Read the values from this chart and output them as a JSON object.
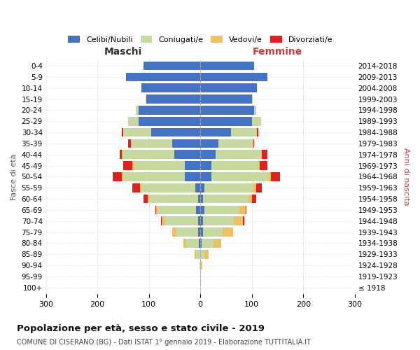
{
  "age_groups": [
    "100+",
    "95-99",
    "90-94",
    "85-89",
    "80-84",
    "75-79",
    "70-74",
    "65-69",
    "60-64",
    "55-59",
    "50-54",
    "45-49",
    "40-44",
    "35-39",
    "30-34",
    "25-29",
    "20-24",
    "15-19",
    "10-14",
    "5-9",
    "0-4"
  ],
  "birth_years": [
    "≤ 1918",
    "1919-1923",
    "1924-1928",
    "1929-1933",
    "1934-1938",
    "1939-1943",
    "1944-1948",
    "1949-1953",
    "1954-1958",
    "1959-1963",
    "1964-1968",
    "1969-1973",
    "1974-1978",
    "1979-1983",
    "1984-1988",
    "1989-1993",
    "1994-1998",
    "1999-2003",
    "2004-2008",
    "2009-2013",
    "2014-2018"
  ],
  "males": {
    "celibi": [
      0,
      0,
      0,
      0,
      3,
      5,
      5,
      8,
      5,
      10,
      30,
      30,
      50,
      55,
      95,
      120,
      120,
      105,
      115,
      145,
      110
    ],
    "coniugati": [
      0,
      0,
      2,
      8,
      25,
      42,
      65,
      75,
      95,
      105,
      120,
      100,
      100,
      80,
      55,
      20,
      5,
      2,
      0,
      0,
      0
    ],
    "vedovi": [
      0,
      0,
      0,
      3,
      5,
      8,
      5,
      3,
      2,
      2,
      2,
      2,
      2,
      0,
      0,
      0,
      0,
      0,
      0,
      0,
      0
    ],
    "divorziati": [
      0,
      0,
      0,
      0,
      0,
      0,
      2,
      2,
      8,
      15,
      18,
      18,
      5,
      5,
      2,
      0,
      0,
      0,
      0,
      0,
      0
    ]
  },
  "females": {
    "nubili": [
      0,
      0,
      0,
      0,
      3,
      5,
      5,
      8,
      5,
      8,
      22,
      22,
      30,
      35,
      60,
      100,
      105,
      100,
      110,
      130,
      105
    ],
    "coniugate": [
      0,
      0,
      2,
      8,
      22,
      38,
      60,
      68,
      88,
      95,
      110,
      90,
      88,
      68,
      48,
      18,
      4,
      2,
      0,
      0,
      0
    ],
    "vedove": [
      0,
      0,
      2,
      8,
      15,
      20,
      18,
      12,
      8,
      5,
      5,
      3,
      2,
      0,
      2,
      0,
      0,
      0,
      0,
      0,
      0
    ],
    "divorziate": [
      0,
      0,
      0,
      0,
      0,
      0,
      2,
      2,
      8,
      12,
      18,
      15,
      10,
      2,
      2,
      0,
      0,
      0,
      0,
      0,
      0
    ]
  },
  "color_celibi": "#4472c4",
  "color_coniugati": "#c5d9a0",
  "color_vedovi": "#f0c060",
  "color_divorziati": "#e02020",
  "title": "Popolazione per età, sesso e stato civile - 2019",
  "subtitle": "COMUNE DI CISERANO (BG) - Dati ISTAT 1° gennaio 2019 - Elaborazione TUTTITALIA.IT",
  "label_maschi": "Maschi",
  "label_femmine": "Femmine",
  "label_fasce": "Fasce di età",
  "label_anni": "Anni di nascita",
  "xlim": 300,
  "xticks": [
    -300,
    -200,
    -100,
    0,
    100,
    200,
    300
  ],
  "background_color": "#ffffff",
  "legend_labels": [
    "Celibi/Nubili",
    "Coniugati/e",
    "Vedovi/e",
    "Divorziati/e"
  ]
}
